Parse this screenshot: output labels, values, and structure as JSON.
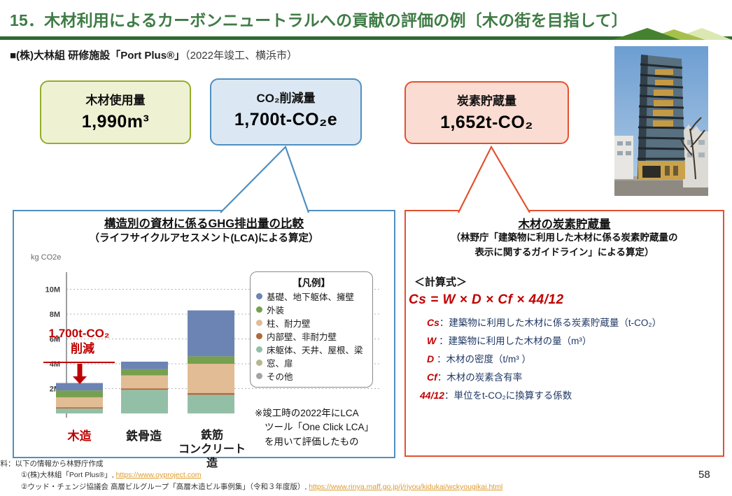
{
  "header": {
    "title": "15．木材利用によるカーボンニュートラルへの貢献の評価の例〔木の街を目指して〕",
    "project_label": "■(株)大林組 研修施設「Port Plus®」",
    "project_note": "（2022年竣工、横浜市）"
  },
  "stat_boxes": [
    {
      "title": "木材使用量",
      "value": "1,990m³"
    },
    {
      "title": "CO₂削減量",
      "value": "1,700t-CO₂e"
    },
    {
      "title": "炭素貯蔵量",
      "value": "1,652t-CO₂"
    }
  ],
  "left_panel": {
    "title": "構造別の資材に係るGHG排出量の比較",
    "subtitle": "（ライフサイクルアセスメント(LCA)による算定）",
    "note_lines": [
      "※竣工時の2022年にLCA",
      "ツール「One Click LCA」",
      "を用いて評価したもの"
    ],
    "chart_data": {
      "type": "stacked-bar",
      "unit_label": "kg CO2e",
      "categories": [
        "木造",
        "鉄骨造",
        "鉄筋コンクリート造"
      ],
      "category_display_lines": [
        [
          "木造"
        ],
        [
          "鉄骨造"
        ],
        [
          "鉄筋",
          "コンクリート造"
        ]
      ],
      "y_ticks": [
        "2M",
        "4M",
        "6M",
        "8M",
        "10M"
      ],
      "y_tick_values_M": [
        2,
        4,
        6,
        8,
        10
      ],
      "ylim_M": [
        0,
        11.3
      ],
      "series_bottom_to_top": [
        {
          "name": "床躯体、天井、屋根、梁",
          "color": "#94bfa7",
          "values_M": [
            0.4,
            1.9,
            1.5
          ]
        },
        {
          "name": "内部壁、非耐力壁",
          "color": "#ae6a3e",
          "values_M": [
            0.1,
            0.12,
            0.15
          ]
        },
        {
          "name": "柱、耐力壁",
          "color": "#e2bc94",
          "values_M": [
            0.8,
            1.05,
            2.35
          ]
        },
        {
          "name": "外装",
          "color": "#76a04e",
          "values_M": [
            0.55,
            0.5,
            0.6
          ]
        },
        {
          "name": "基礎、地下躯体、擁壁",
          "color": "#6c84b4",
          "values_M": [
            0.6,
            0.6,
            3.7
          ]
        }
      ],
      "totals_M": [
        2.45,
        4.17,
        8.3
      ],
      "annotation": {
        "line1": "1,700t-CO₂",
        "line2": "削減",
        "color": "#c00000"
      },
      "legend": {
        "title": "【凡例】",
        "items": [
          {
            "label": "基礎、地下躯体、擁壁",
            "color": "#6c84b4"
          },
          {
            "label": "外装",
            "color": "#76a04e"
          },
          {
            "label": "柱、耐力壁",
            "color": "#e2bc94"
          },
          {
            "label": "内部壁、非耐力壁",
            "color": "#ae6a3e"
          },
          {
            "label": "床躯体、天井、屋根、梁",
            "color": "#94bfa7"
          },
          {
            "label": "窓、扉",
            "color": "#b3b98b"
          },
          {
            "label": "その他",
            "color": "#a3a3a3"
          }
        ]
      }
    }
  },
  "right_panel": {
    "title": "木材の炭素貯蔵量",
    "subtitle_line1": "（林野庁「建築物に利用した木材に係る炭素貯蔵量の",
    "subtitle_line2": "表示に関するガイドライン」による算定）",
    "formula_label": "＜計算式＞",
    "formula": "Cs = W × D × Cf ×  44/12",
    "definitions": [
      {
        "term": "Cs",
        "sep": "：",
        "desc": "建築物に利用した木材に係る炭素貯蔵量（t-CO₂）"
      },
      {
        "term": "W ",
        "sep": "：",
        "desc": "建築物に利用した木材の量（m³）"
      },
      {
        "term": "D ",
        "sep": "：",
        "desc": "木材の密度（t/m³ ）"
      },
      {
        "term": "Cf",
        "sep": "：",
        "desc": "木材の炭素含有率"
      },
      {
        "term": "44/12",
        "sep": "：",
        "desc": "単位をt-CO₂に換算する係数"
      }
    ]
  },
  "footer": {
    "source_line": "資料：以下の情報から林野庁作成",
    "ref1_text": "①(株)大林組「Port Plus®」, ",
    "ref1_link": "https://www.oyproject.com",
    "ref2_text": "②ウッド・チェンジ協議会 高層ビルグループ「高層木造ビル事例集」（令和３年度版）, ",
    "ref2_link": "https://www.rinya.maff.go.jp/j/riyou/kidukai/wckyougikai.html",
    "page_number": "58"
  },
  "colors": {
    "title_green": "#3e7b44",
    "rule_green": "#2f6b31",
    "box_wood_border": "#94ad2a",
    "box_wood_bg": "#eff1d3",
    "box_co2_border": "#4f8fc0",
    "box_co2_bg": "#dbe8f3",
    "box_carbon_border": "#e2512e",
    "box_carbon_bg": "#fadcd2",
    "annotation_red": "#c00000",
    "definition_navy": "#1f3864",
    "link_orange": "#dd9b2f"
  }
}
